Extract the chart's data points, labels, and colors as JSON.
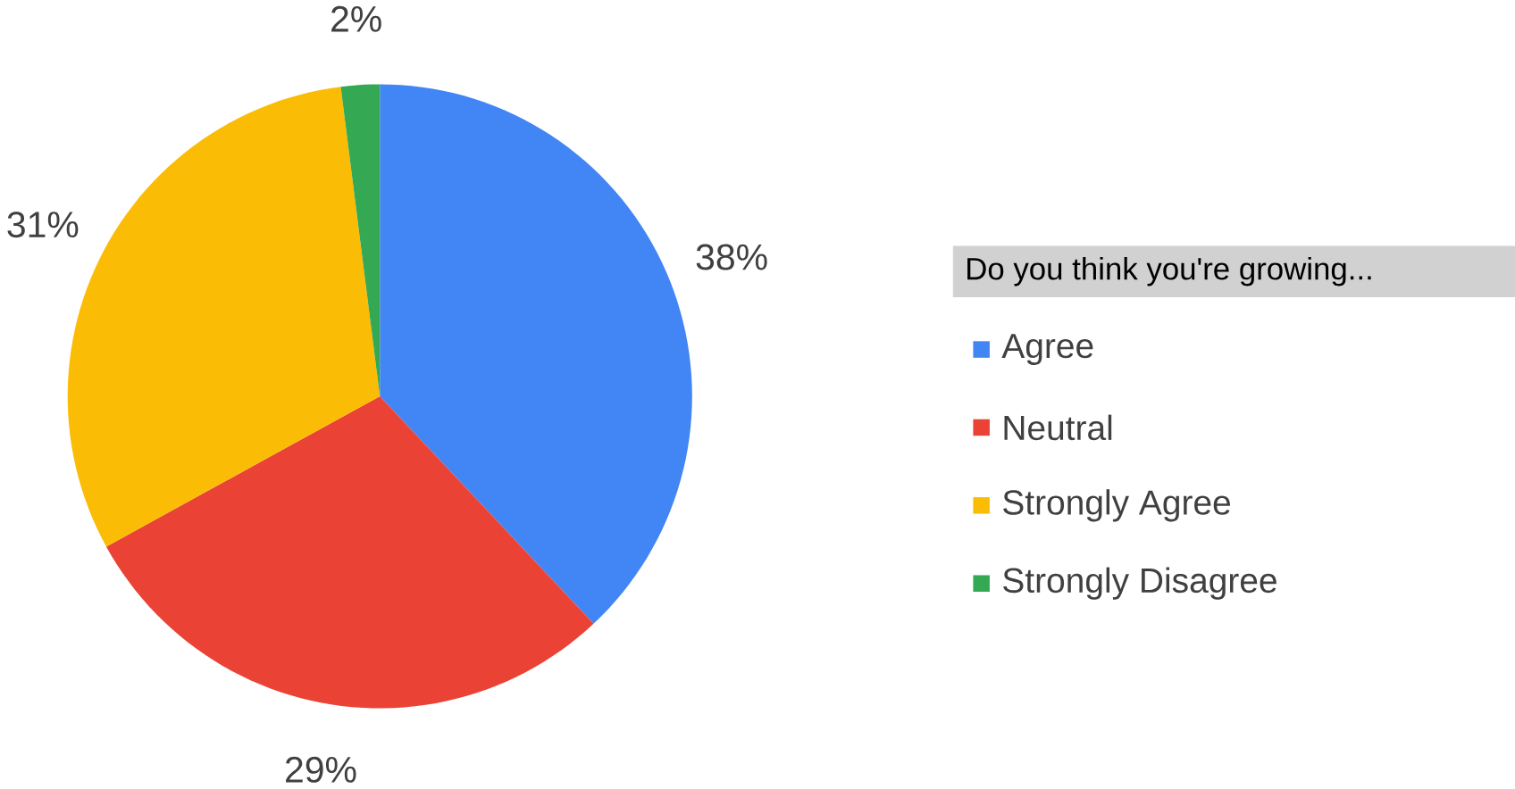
{
  "chart_data": {
    "type": "pie",
    "legend_title": "Do you think you're growing...",
    "categories": [
      "Agree",
      "Neutral",
      "Strongly Agree",
      "Strongly Disagree"
    ],
    "values": [
      38,
      29,
      31,
      2
    ],
    "value_labels": [
      "38%",
      "29%",
      "31%",
      "2%"
    ],
    "colors": [
      "#4285f4",
      "#ea4335",
      "#fbbc05",
      "#34a853"
    ],
    "legend": "right"
  }
}
